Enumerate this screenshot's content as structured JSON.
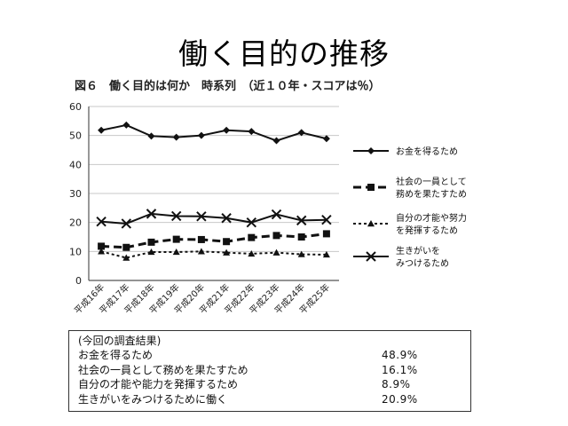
{
  "slide_title": "働く目的の推移",
  "figure_title": "図６　働く目的は何か　時系列　（近１０年・スコアは％）",
  "chart_data": {
    "type": "line",
    "categories": [
      "平成16年",
      "平成17年",
      "平成18年",
      "平成19年",
      "平成20年",
      "平成21年",
      "平成22年",
      "平成23年",
      "平成24年",
      "平成25年"
    ],
    "ylim": [
      0,
      60
    ],
    "yticks": [
      0,
      10,
      20,
      30,
      40,
      50,
      60
    ],
    "grid": "horizontal",
    "legend_position": "right",
    "series": [
      {
        "name": "お金を得るため",
        "marker": "diamond",
        "line": "solid",
        "values": [
          51.8,
          53.6,
          49.8,
          49.4,
          50.0,
          51.8,
          51.4,
          48.2,
          51.0,
          48.9
        ]
      },
      {
        "name": "社会の一員として務めを果たすため",
        "marker": "square",
        "line": "dashed",
        "values": [
          11.8,
          11.4,
          13.2,
          14.2,
          14.1,
          13.4,
          14.8,
          15.5,
          15.0,
          16.1
        ]
      },
      {
        "name": "自分の才能や努力を発揮するため",
        "marker": "triangle",
        "line": "dotted",
        "values": [
          10.0,
          7.8,
          9.8,
          9.8,
          10.0,
          9.6,
          9.2,
          9.6,
          9.0,
          8.9
        ]
      },
      {
        "name": "生きがいをみつけるため",
        "marker": "x",
        "line": "solid",
        "values": [
          20.3,
          19.6,
          23.0,
          22.2,
          22.1,
          21.5,
          20.0,
          22.8,
          20.7,
          20.9
        ]
      }
    ],
    "legend": [
      {
        "lines": [
          "お金を得るため"
        ]
      },
      {
        "lines": [
          "社会の一員として",
          "務めを果たすため"
        ]
      },
      {
        "lines": [
          "自分の才能や努力",
          "を発揮するため"
        ]
      },
      {
        "lines": [
          "生きがいを",
          "みつけるため"
        ]
      }
    ]
  },
  "results_box": {
    "header": "(今回の調査結果)",
    "rows": [
      {
        "label": "お金を得るため",
        "value": "48.9%"
      },
      {
        "label": "社会の一員として務めを果たすため",
        "value": "16.1%"
      },
      {
        "label": "自分の才能や能力を発揮するため",
        "value": "8.9%"
      },
      {
        "label": "生きがいをみつけるために働く",
        "value": "20.9%"
      }
    ]
  }
}
